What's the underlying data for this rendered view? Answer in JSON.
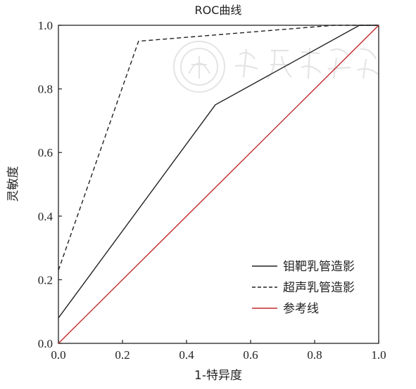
{
  "chart_data": {
    "type": "line",
    "title": "ROC曲线",
    "xlabel": "1-特异度",
    "ylabel": "灵敏度",
    "xlim": [
      0.0,
      1.0
    ],
    "ylim": [
      0.0,
      1.0
    ],
    "x_ticks": [
      "0.0",
      "0.2",
      "0.4",
      "0.6",
      "0.8",
      "1.0"
    ],
    "y_ticks": [
      "0.0",
      "0.2",
      "0.4",
      "0.6",
      "0.8",
      "1.0"
    ],
    "grid": false,
    "legend_position": "bottom-right",
    "series": [
      {
        "name": "钼靶乳管造影",
        "style": "solid",
        "color": "#222222",
        "x": [
          0.0,
          0.49,
          0.94,
          1.0
        ],
        "y": [
          0.08,
          0.75,
          1.0,
          1.0
        ]
      },
      {
        "name": "超声乳管造影",
        "style": "dashed",
        "color": "#222222",
        "x": [
          0.0,
          0.25,
          0.86,
          1.0
        ],
        "y": [
          0.23,
          0.95,
          1.0,
          1.0
        ]
      },
      {
        "name": "参考线",
        "style": "solid",
        "color": "#c0292b",
        "x": [
          0.0,
          1.0
        ],
        "y": [
          0.0,
          1.0
        ]
      }
    ]
  },
  "watermark": {
    "text": "中華醫學會",
    "seal": "seal-emblem"
  }
}
